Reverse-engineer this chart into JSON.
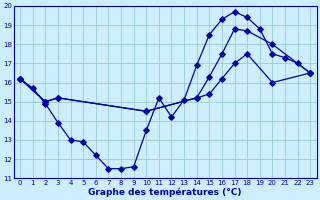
{
  "title": "Graphe des températures (°C)",
  "bg_color": "#cceeff",
  "grid_color": "#99cccc",
  "line_color": "#0000aa",
  "xlim": [
    -0.5,
    23.5
  ],
  "ylim": [
    11,
    20
  ],
  "xticks": [
    0,
    1,
    2,
    3,
    4,
    5,
    6,
    7,
    8,
    9,
    10,
    11,
    12,
    13,
    14,
    15,
    16,
    17,
    18,
    19,
    20,
    21,
    22,
    23
  ],
  "yticks": [
    11,
    12,
    13,
    14,
    15,
    16,
    17,
    18,
    19,
    20
  ],
  "line1_x": [
    0,
    1,
    2,
    3,
    4,
    5,
    6,
    7,
    8,
    9,
    10,
    11,
    12,
    13,
    14,
    15,
    16,
    17,
    18,
    19,
    20,
    21,
    22,
    23
  ],
  "line1_y": [
    16.2,
    15.7,
    14.9,
    13.9,
    13.0,
    12.9,
    12.2,
    11.5,
    11.5,
    11.6,
    13.5,
    15.2,
    14.2,
    15.1,
    16.9,
    18.5,
    19.3,
    19.7,
    19.4,
    18.8,
    17.5,
    17.3,
    17.0,
    16.5
  ],
  "line2_x": [
    0,
    2,
    3,
    10,
    14,
    15,
    16,
    17,
    18,
    20,
    23
  ],
  "line2_y": [
    16.2,
    15.0,
    15.2,
    14.5,
    15.2,
    16.3,
    17.5,
    18.8,
    18.7,
    18.0,
    16.5
  ],
  "line3_x": [
    0,
    2,
    3,
    10,
    14,
    15,
    16,
    17,
    18,
    20,
    23
  ],
  "line3_y": [
    16.2,
    15.0,
    15.2,
    14.5,
    15.2,
    15.4,
    16.2,
    17.0,
    17.5,
    16.0,
    16.5
  ]
}
